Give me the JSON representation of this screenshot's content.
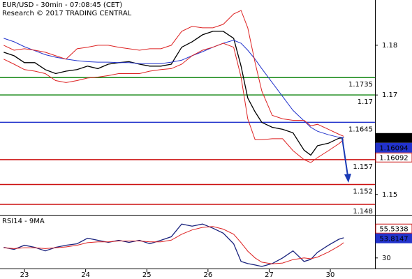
{
  "chart_data": [
    {
      "type": "line",
      "title": "EUR/USD - 30min - 07:08:45 (CET)",
      "subtitle": "Research © 2017 TRADING CENTRAL",
      "x": [
        -0.34,
        -0.17,
        0,
        0.17,
        0.34,
        0.51,
        0.68,
        0.86,
        1.03,
        1.2,
        1.37,
        1.54,
        1.71,
        1.88,
        2.05,
        2.23,
        2.4,
        2.57,
        2.74,
        2.91,
        3.08,
        3.25,
        3.42,
        3.54,
        3.65,
        3.77,
        3.88,
        4.05,
        4.22,
        4.39,
        4.57,
        4.68,
        4.79,
        4.97,
        5.14,
        5.22
      ],
      "xlim": [
        -0.4,
        5.73
      ],
      "ylim": [
        1.1459,
        1.1891
      ],
      "yticks": [
        1.15,
        1.17,
        1.18
      ],
      "series": [
        {
          "color": "#000000",
          "values": [
            1.1786,
            1.1779,
            1.1765,
            1.1765,
            1.1751,
            1.1743,
            1.1748,
            1.1751,
            1.1758,
            1.1753,
            1.1762,
            1.1765,
            1.1767,
            1.1762,
            1.1758,
            1.1758,
            1.1762,
            1.1796,
            1.1807,
            1.1821,
            1.1828,
            1.1828,
            1.1814,
            1.1758,
            1.1694,
            1.1666,
            1.1645,
            1.1635,
            1.1631,
            1.1624,
            1.1589,
            1.1579,
            1.1598,
            1.1603,
            1.1613,
            1.1614
          ]
        },
        {
          "color": "#2233cc",
          "values": [
            1.1814,
            1.1807,
            1.1797,
            1.1789,
            1.1781,
            1.1776,
            1.1772,
            1.1769,
            1.1767,
            1.1766,
            1.1766,
            1.1765,
            1.1765,
            1.1763,
            1.1763,
            1.1763,
            1.1766,
            1.177,
            1.1779,
            1.1787,
            1.1796,
            1.1804,
            1.181,
            1.1804,
            1.179,
            1.1772,
            1.1753,
            1.1725,
            1.1697,
            1.1669,
            1.1648,
            1.1635,
            1.1627,
            1.162,
            1.1615,
            1.1614
          ]
        },
        {
          "color": "#dd2222",
          "values": [
            1.18,
            1.179,
            1.1793,
            1.179,
            1.1786,
            1.1779,
            1.1772,
            1.1793,
            1.1796,
            1.18,
            1.18,
            1.1796,
            1.1793,
            1.179,
            1.1793,
            1.1793,
            1.18,
            1.1828,
            1.1838,
            1.1835,
            1.1835,
            1.1842,
            1.1863,
            1.187,
            1.1835,
            1.1765,
            1.1708,
            1.1659,
            1.1652,
            1.1649,
            1.1649,
            1.1638,
            1.1641,
            1.1631,
            1.1621,
            1.1617
          ]
        },
        {
          "color": "#dd2222",
          "values": [
            1.1772,
            1.1762,
            1.1751,
            1.1748,
            1.1743,
            1.1729,
            1.1725,
            1.1729,
            1.1734,
            1.1736,
            1.1739,
            1.1743,
            1.1743,
            1.1743,
            1.1748,
            1.1751,
            1.1753,
            1.1762,
            1.1779,
            1.179,
            1.1796,
            1.1804,
            1.1796,
            1.1736,
            1.1652,
            1.161,
            1.161,
            1.1612,
            1.1612,
            1.1588,
            1.157,
            1.1564,
            1.1574,
            1.1588,
            1.1602,
            1.161
          ]
        }
      ],
      "levels": [
        {
          "value": 1.1735,
          "color": "#1a8a1a"
        },
        {
          "value": 1.17,
          "color": "#1a8a1a"
        },
        {
          "value": 1.1645,
          "color": "#2233cc"
        },
        {
          "value": 1.157,
          "color": "#cc1111"
        },
        {
          "value": 1.152,
          "color": "#cc1111"
        },
        {
          "value": 1.148,
          "color": "#cc1111"
        }
      ],
      "markers": [
        {
          "value": 1.16136,
          "color": "#000000",
          "filled": true
        },
        {
          "value": 1.16094,
          "color": "#2233cc",
          "filled": true
        },
        {
          "value": 1.16092,
          "color": "#cc1111",
          "filled": false
        }
      ]
    },
    {
      "type": "line",
      "title": "RSI14 - 9MA",
      "x": [
        -0.34,
        -0.17,
        0,
        0.17,
        0.34,
        0.51,
        0.68,
        0.86,
        1.03,
        1.2,
        1.37,
        1.54,
        1.71,
        1.88,
        2.05,
        2.23,
        2.4,
        2.57,
        2.74,
        2.91,
        3.08,
        3.25,
        3.42,
        3.54,
        3.65,
        3.77,
        3.88,
        4.05,
        4.22,
        4.39,
        4.57,
        4.68,
        4.79,
        4.97,
        5.14,
        5.22
      ],
      "xlim": [
        -0.4,
        5.73
      ],
      "xticks": [
        {
          "value": 0,
          "label": "23"
        },
        {
          "value": 1,
          "label": "24"
        },
        {
          "value": 2,
          "label": "25"
        },
        {
          "value": 3,
          "label": "26"
        },
        {
          "value": 4,
          "label": "27"
        },
        {
          "value": 5,
          "label": "30"
        }
      ],
      "ylim": [
        17.5,
        80
      ],
      "yticks": [
        30
      ],
      "series": [
        {
          "color": "#1a237e",
          "values": [
            42.5,
            40,
            45,
            42.5,
            38.3,
            42.5,
            45,
            46.7,
            53.3,
            50.8,
            48.3,
            50.8,
            48.3,
            50.8,
            46.7,
            50.8,
            55,
            70,
            67.5,
            70,
            65,
            59.2,
            46.7,
            25.8,
            23.3,
            21.7,
            20,
            23.3,
            30,
            38.3,
            25.8,
            28.3,
            36.7,
            45,
            52,
            53.8
          ]
        },
        {
          "color": "#dd2222",
          "values": [
            42,
            41,
            42,
            42,
            41,
            42,
            43,
            45,
            48,
            49,
            49,
            50,
            50,
            50,
            49,
            49,
            51,
            58,
            63,
            66,
            67,
            64,
            58,
            48,
            38,
            30,
            25,
            23,
            24,
            28,
            30,
            29,
            31,
            37,
            44,
            48
          ]
        }
      ],
      "markers": [
        {
          "value": 55.5338,
          "color": "#cc1111",
          "filled": false
        },
        {
          "value": 53.8147,
          "color": "#2233cc",
          "filled": true
        }
      ]
    }
  ]
}
